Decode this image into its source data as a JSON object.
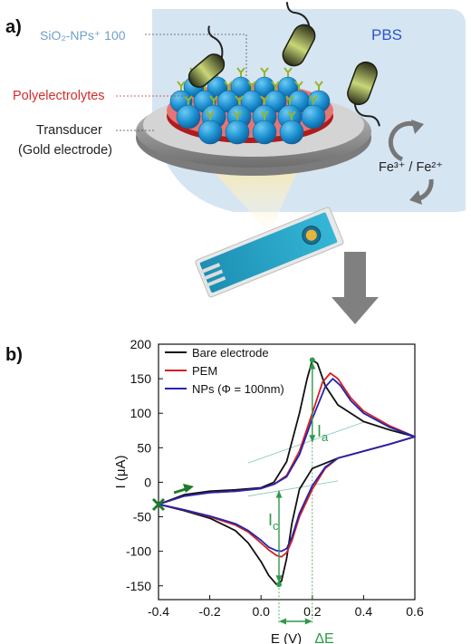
{
  "panel_a": {
    "label": "a)",
    "labels": {
      "nps": "SiO₂-NPs⁺ 100",
      "polyelectrolytes": "Polyelectrolytes",
      "transducer_line1": "Transducer",
      "transducer_line2": "(Gold electrode)",
      "pbs": "PBS",
      "redox": "Fe³⁺ / Fe²⁺"
    },
    "colors": {
      "pbs_bg": "#d6e5f2",
      "pbs_text": "#2b57c9",
      "nps_text": "#6f9fcb",
      "poly_text": "#d52b2b",
      "np_blue": "#1f93d3",
      "electrode": "#d45e5e"
    }
  },
  "panel_b": {
    "label": "b)",
    "annotations": {
      "ia": "I",
      "ia_sub": "a",
      "ic": "I",
      "ic_sub": "c",
      "delta_e": "ΔE"
    },
    "colors": {
      "annotation": "#2f9a4a",
      "arrow": "#1d7a2a"
    }
  },
  "chart_data": {
    "type": "line",
    "xlabel": "E (V)",
    "ylabel": "I (μA)",
    "xlim": [
      -0.4,
      0.6
    ],
    "ylim": [
      -170,
      200
    ],
    "xticks": [
      -0.4,
      -0.2,
      0.0,
      0.2,
      0.4,
      0.6
    ],
    "yticks": [
      -150,
      -100,
      -50,
      0,
      50,
      100,
      150,
      200
    ],
    "xtick_labels": [
      "-0.4",
      "-0.2",
      "0.0",
      "0.2",
      "0.4",
      "0.6"
    ],
    "ytick_labels": [
      "-150",
      "-100",
      "-50",
      "0",
      "50",
      "100",
      "150",
      "200"
    ],
    "legend_position": "top-right",
    "series": [
      {
        "name": "Bare electrode",
        "color": "#111111",
        "forward": [
          [
            -0.4,
            -32
          ],
          [
            -0.3,
            -18
          ],
          [
            -0.2,
            -13
          ],
          [
            -0.1,
            -11
          ],
          [
            0.0,
            -8
          ],
          [
            0.05,
            0
          ],
          [
            0.1,
            30
          ],
          [
            0.15,
            100
          ],
          [
            0.18,
            150
          ],
          [
            0.2,
            177
          ],
          [
            0.22,
            172
          ],
          [
            0.25,
            140
          ],
          [
            0.3,
            112
          ],
          [
            0.4,
            88
          ],
          [
            0.5,
            76
          ],
          [
            0.6,
            66
          ]
        ],
        "reverse": [
          [
            0.6,
            66
          ],
          [
            0.5,
            55
          ],
          [
            0.4,
            45
          ],
          [
            0.3,
            35
          ],
          [
            0.2,
            20
          ],
          [
            0.15,
            -10
          ],
          [
            0.12,
            -60
          ],
          [
            0.1,
            -110
          ],
          [
            0.08,
            -143
          ],
          [
            0.06,
            -148
          ],
          [
            0.03,
            -135
          ],
          [
            0.0,
            -115
          ],
          [
            -0.05,
            -88
          ],
          [
            -0.1,
            -70
          ],
          [
            -0.2,
            -52
          ],
          [
            -0.3,
            -41
          ],
          [
            -0.4,
            -32
          ]
        ]
      },
      {
        "name": "PEM",
        "color": "#d42020",
        "forward": [
          [
            -0.4,
            -32
          ],
          [
            -0.3,
            -20
          ],
          [
            -0.2,
            -15
          ],
          [
            -0.1,
            -13
          ],
          [
            0.0,
            -9
          ],
          [
            0.05,
            -3
          ],
          [
            0.1,
            10
          ],
          [
            0.15,
            45
          ],
          [
            0.2,
            100
          ],
          [
            0.24,
            145
          ],
          [
            0.27,
            158
          ],
          [
            0.3,
            150
          ],
          [
            0.35,
            122
          ],
          [
            0.4,
            103
          ],
          [
            0.5,
            82
          ],
          [
            0.6,
            66
          ]
        ],
        "reverse": [
          [
            0.6,
            66
          ],
          [
            0.5,
            55
          ],
          [
            0.4,
            45
          ],
          [
            0.3,
            35
          ],
          [
            0.25,
            20
          ],
          [
            0.2,
            -10
          ],
          [
            0.15,
            -50
          ],
          [
            0.12,
            -85
          ],
          [
            0.1,
            -102
          ],
          [
            0.08,
            -108
          ],
          [
            0.06,
            -106
          ],
          [
            0.03,
            -98
          ],
          [
            0.0,
            -88
          ],
          [
            -0.05,
            -72
          ],
          [
            -0.1,
            -62
          ],
          [
            -0.2,
            -50
          ],
          [
            -0.3,
            -40
          ],
          [
            -0.4,
            -32
          ]
        ]
      },
      {
        "name": "NPs (Φ = 100nm)",
        "color": "#2424b0",
        "forward": [
          [
            -0.4,
            -32
          ],
          [
            -0.3,
            -20
          ],
          [
            -0.2,
            -15
          ],
          [
            -0.1,
            -13
          ],
          [
            0.0,
            -9
          ],
          [
            0.05,
            -3
          ],
          [
            0.1,
            8
          ],
          [
            0.15,
            40
          ],
          [
            0.2,
            92
          ],
          [
            0.25,
            138
          ],
          [
            0.28,
            150
          ],
          [
            0.31,
            140
          ],
          [
            0.35,
            118
          ],
          [
            0.4,
            100
          ],
          [
            0.5,
            80
          ],
          [
            0.6,
            66
          ]
        ],
        "reverse": [
          [
            0.6,
            66
          ],
          [
            0.5,
            55
          ],
          [
            0.4,
            45
          ],
          [
            0.3,
            35
          ],
          [
            0.25,
            22
          ],
          [
            0.2,
            -5
          ],
          [
            0.15,
            -45
          ],
          [
            0.12,
            -80
          ],
          [
            0.1,
            -96
          ],
          [
            0.08,
            -100
          ],
          [
            0.06,
            -99
          ],
          [
            0.03,
            -94
          ],
          [
            0.0,
            -84
          ],
          [
            -0.05,
            -70
          ],
          [
            -0.1,
            -60
          ],
          [
            -0.2,
            -49
          ],
          [
            -0.3,
            -40
          ],
          [
            -0.4,
            -32
          ]
        ]
      }
    ]
  }
}
